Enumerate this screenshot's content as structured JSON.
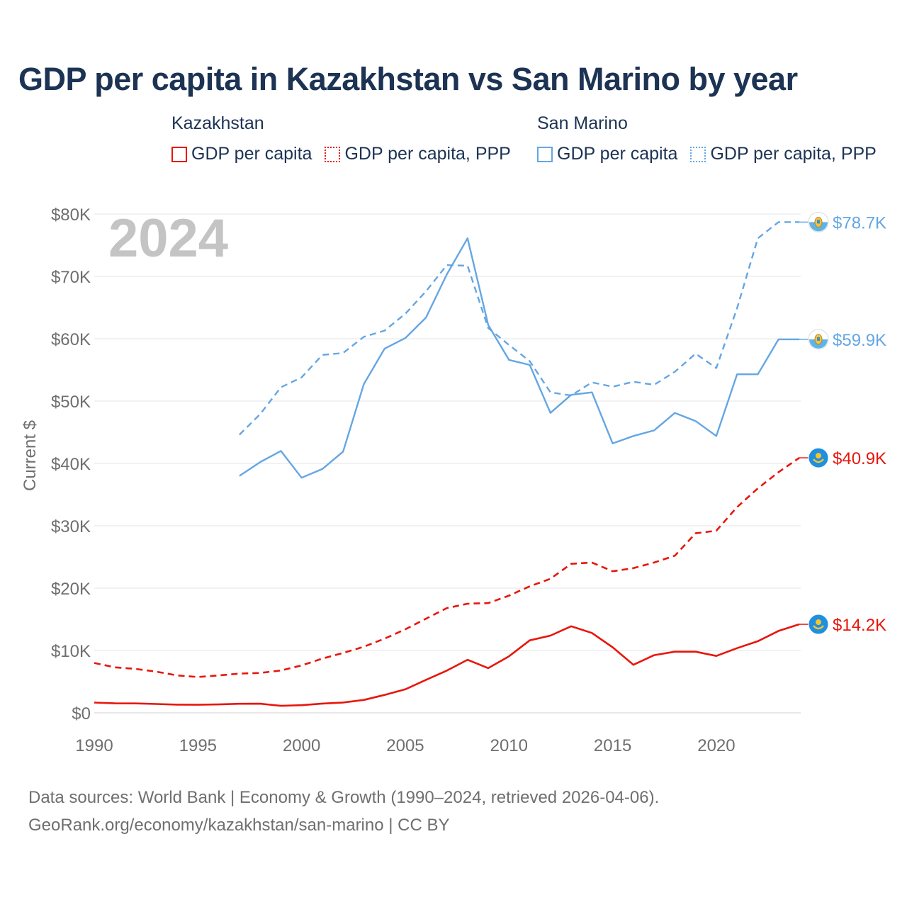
{
  "title": "GDP per capita in Kazakhstan vs San Marino by year",
  "legend": {
    "groups": [
      {
        "name": "Kazakhstan",
        "items": [
          "GDP per capita",
          "GDP per capita, PPP"
        ],
        "color": "#e8160c"
      },
      {
        "name": "San Marino",
        "items": [
          "GDP per capita",
          "GDP per capita, PPP"
        ],
        "color": "#64a6e4"
      }
    ]
  },
  "chart_data": {
    "type": "line",
    "year_label": "2024",
    "ylabel": "Current $",
    "xlim": [
      1990,
      2024
    ],
    "ylim": [
      0,
      80000
    ],
    "x_ticks": [
      1990,
      1995,
      2000,
      2005,
      2010,
      2015,
      2020
    ],
    "y_ticks": [
      {
        "value": 0,
        "label": "$0"
      },
      {
        "value": 10000,
        "label": "$10K"
      },
      {
        "value": 20000,
        "label": "$20K"
      },
      {
        "value": 30000,
        "label": "$30K"
      },
      {
        "value": 40000,
        "label": "$40K"
      },
      {
        "value": 50000,
        "label": "$50K"
      },
      {
        "value": 60000,
        "label": "$60K"
      },
      {
        "value": 70000,
        "label": "$70K"
      },
      {
        "value": 80000,
        "label": "$80K"
      }
    ],
    "grid": true,
    "series": [
      {
        "name": "Kazakhstan GDP per capita",
        "country": "Kazakhstan",
        "style": "solid",
        "color": "#e8160c",
        "x": [
          1990,
          1991,
          1992,
          1993,
          1994,
          1995,
          1996,
          1997,
          1998,
          1999,
          2000,
          2001,
          2002,
          2003,
          2004,
          2005,
          2006,
          2007,
          2008,
          2009,
          2010,
          2011,
          2012,
          2013,
          2014,
          2015,
          2016,
          2017,
          2018,
          2019,
          2020,
          2021,
          2022,
          2023,
          2024
        ],
        "values": [
          1650,
          1520,
          1510,
          1420,
          1320,
          1290,
          1350,
          1450,
          1470,
          1130,
          1230,
          1490,
          1660,
          2070,
          2870,
          3770,
          5290,
          6770,
          8510,
          7170,
          9070,
          11630,
          12390,
          13890,
          12810,
          10510,
          7710,
          9250,
          9810,
          9810,
          9120,
          10370,
          11490,
          13140,
          14200
        ],
        "end_label": "$14.2K"
      },
      {
        "name": "Kazakhstan GDP per capita, PPP",
        "country": "Kazakhstan",
        "style": "dashed",
        "color": "#e8160c",
        "x": [
          1990,
          1991,
          1992,
          1993,
          1994,
          1995,
          1996,
          1997,
          1998,
          1999,
          2000,
          2001,
          2002,
          2003,
          2004,
          2005,
          2006,
          2007,
          2008,
          2009,
          2010,
          2011,
          2012,
          2013,
          2014,
          2015,
          2016,
          2017,
          2018,
          2019,
          2020,
          2021,
          2022,
          2023,
          2024
        ],
        "values": [
          8000,
          7300,
          7050,
          6600,
          6000,
          5750,
          6000,
          6300,
          6400,
          6800,
          7600,
          8700,
          9600,
          10600,
          11900,
          13400,
          15100,
          16800,
          17500,
          17600,
          18800,
          20300,
          21500,
          23900,
          24100,
          22700,
          23200,
          24100,
          25200,
          28800,
          29200,
          33000,
          36000,
          38600,
          40900
        ],
        "end_label": "$40.9K"
      },
      {
        "name": "San Marino GDP per capita",
        "country": "San Marino",
        "style": "solid",
        "color": "#64a6e4",
        "x": [
          1997,
          1998,
          1999,
          2000,
          2001,
          2002,
          2003,
          2004,
          2005,
          2006,
          2007,
          2008,
          2009,
          2010,
          2011,
          2012,
          2013,
          2014,
          2015,
          2016,
          2017,
          2018,
          2019,
          2020,
          2021,
          2022,
          2023,
          2024
        ],
        "values": [
          38000,
          40200,
          42000,
          37700,
          39100,
          41900,
          52700,
          58400,
          60100,
          63400,
          70300,
          76100,
          62200,
          56600,
          55800,
          48100,
          51000,
          51400,
          43200,
          44400,
          45300,
          48100,
          46800,
          44400,
          54300,
          54300,
          59900,
          59900
        ],
        "end_label": "$59.9K"
      },
      {
        "name": "San Marino GDP per capita, PPP",
        "country": "San Marino",
        "style": "dashed",
        "color": "#64a6e4",
        "x": [
          1997,
          1998,
          1999,
          2000,
          2001,
          2002,
          2003,
          2004,
          2005,
          2006,
          2007,
          2008,
          2009,
          2010,
          2011,
          2012,
          2013,
          2014,
          2015,
          2016,
          2017,
          2018,
          2019,
          2020,
          2021,
          2022,
          2023,
          2024
        ],
        "values": [
          44600,
          47900,
          52200,
          53800,
          57400,
          57700,
          60300,
          61300,
          64000,
          67600,
          71800,
          71700,
          61700,
          59000,
          56400,
          51400,
          50900,
          53000,
          52300,
          53100,
          52600,
          54700,
          57600,
          55300,
          64900,
          76100,
          78700,
          78700
        ],
        "end_label": "$78.7K"
      }
    ]
  },
  "footer": {
    "line1": "Data sources: World Bank | Economy & Growth (1990–2024, retrieved 2026-04-06).",
    "line2": "GeoRank.org/economy/kazakhstan/san-marino | CC BY"
  }
}
